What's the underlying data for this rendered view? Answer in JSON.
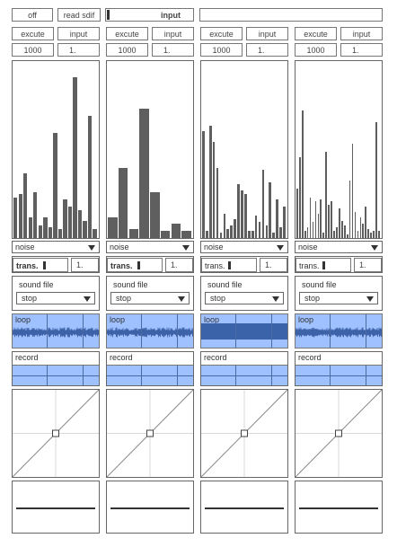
{
  "top": {
    "off_label": "off",
    "read_sdif_label": "read sdif",
    "input_label": "input",
    "blank_label": ""
  },
  "columns": [
    {
      "execute_label": "excute",
      "input_label": "input",
      "count": "1000",
      "value": "1.",
      "bars": [
        23,
        25,
        37,
        12,
        26,
        7,
        12,
        6,
        60,
        5,
        22,
        18,
        92,
        16,
        10,
        70,
        5
      ],
      "noise_label": "noise",
      "trans_label": "trans.",
      "trans_value": "1.",
      "trans_bold": true,
      "sound_file_label": "sound file",
      "sound_file_value": "stop",
      "loop_label": "loop",
      "loop_state": "wave",
      "record_label": "record"
    },
    {
      "execute_label": "excute",
      "input_label": "input",
      "count": "1000",
      "value": "1.",
      "bars": [
        12,
        40,
        5,
        74,
        26,
        4,
        8,
        4
      ],
      "noise_label": "noise",
      "trans_label": "trans.",
      "trans_value": "1.",
      "trans_bold": true,
      "sound_file_label": "sound file",
      "sound_file_value": "stop",
      "loop_label": "loop",
      "loop_state": "wave",
      "record_label": "record"
    },
    {
      "execute_label": "excute",
      "input_label": "input",
      "count": "1000",
      "value": "1.",
      "bars": [
        61,
        4,
        64,
        55,
        40,
        3,
        14,
        5,
        7,
        11,
        31,
        27,
        25,
        4,
        4,
        13,
        9,
        39,
        7,
        32,
        3,
        22,
        6,
        18
      ],
      "noise_label": "noise",
      "trans_label": "trans.",
      "trans_value": "1.",
      "trans_bold": false,
      "sound_file_label": "sound file",
      "sound_file_value": "stop",
      "loop_label": "loop",
      "loop_state": "filled",
      "record_label": "record"
    },
    {
      "execute_label": "excute",
      "input_label": "input",
      "count": "1000",
      "value": "1.",
      "bars": [
        28,
        46,
        73,
        4,
        6,
        23,
        9,
        21,
        14,
        22,
        3,
        49,
        19,
        21,
        4,
        6,
        17,
        10,
        7,
        2,
        33,
        54,
        15,
        4,
        12,
        8,
        18,
        5,
        3,
        4,
        66,
        4
      ],
      "noise_label": "noise",
      "trans_label": "trans.",
      "trans_value": "1.",
      "trans_bold": false,
      "sound_file_label": "sound file",
      "sound_file_value": "stop",
      "loop_label": "loop",
      "loop_state": "wave",
      "record_label": "record"
    }
  ]
}
